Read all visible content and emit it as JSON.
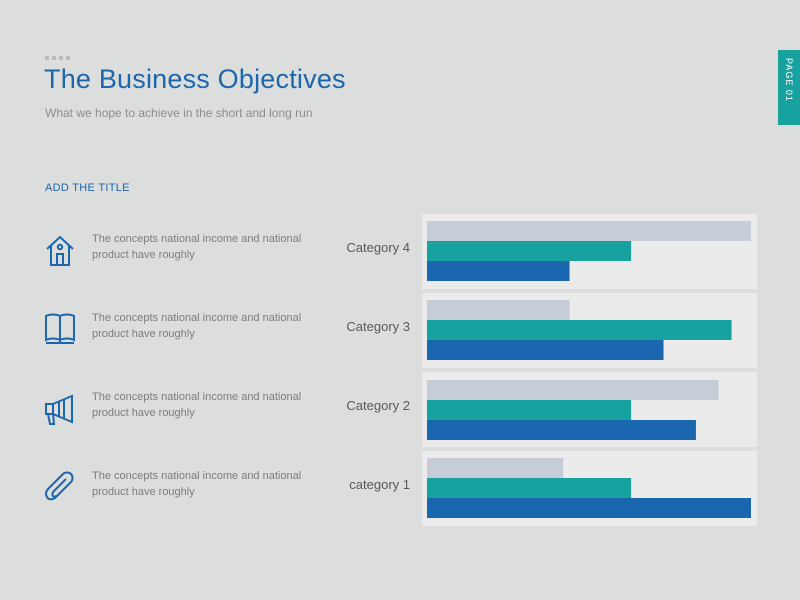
{
  "header": {
    "title": "The Business Objectives",
    "subtitle": "What we hope to achieve in the short and long run"
  },
  "page_tab": {
    "label": "PAGE 01"
  },
  "section": {
    "title": "ADD THE TITLE"
  },
  "rows": [
    {
      "icon": "house-icon",
      "text": "The concepts national income and national product have roughly"
    },
    {
      "icon": "book-icon",
      "text": "The concepts national income and national product have roughly"
    },
    {
      "icon": "megaphone-icon",
      "text": "The concepts national income and national product have roughly"
    },
    {
      "icon": "paperclip-icon",
      "text": "The concepts national income and national product have roughly"
    }
  ],
  "colors": {
    "title": "#1c66ad",
    "accent_teal": "#17a2a0",
    "series_light": "#c7cdd6",
    "series_teal": "#17a2a0",
    "series_blue": "#1a67b0",
    "panel_bg": "#ebebeb",
    "background": "#dcdddd"
  },
  "chart_data": {
    "type": "bar",
    "orientation": "horizontal",
    "categories": [
      "Category 4",
      "Category 3",
      "Category 2",
      "category 1"
    ],
    "series": [
      {
        "values": [
          100,
          44,
          90,
          42
        ],
        "color": "#c7cdd6"
      },
      {
        "values": [
          63,
          94,
          63,
          63
        ],
        "color": "#17a2a0"
      },
      {
        "values": [
          44,
          73,
          83,
          100
        ],
        "color": "#1a67b0"
      }
    ],
    "xlim": [
      0,
      100
    ],
    "xlabel": "",
    "ylabel": "",
    "grid": false,
    "legend": "none"
  }
}
